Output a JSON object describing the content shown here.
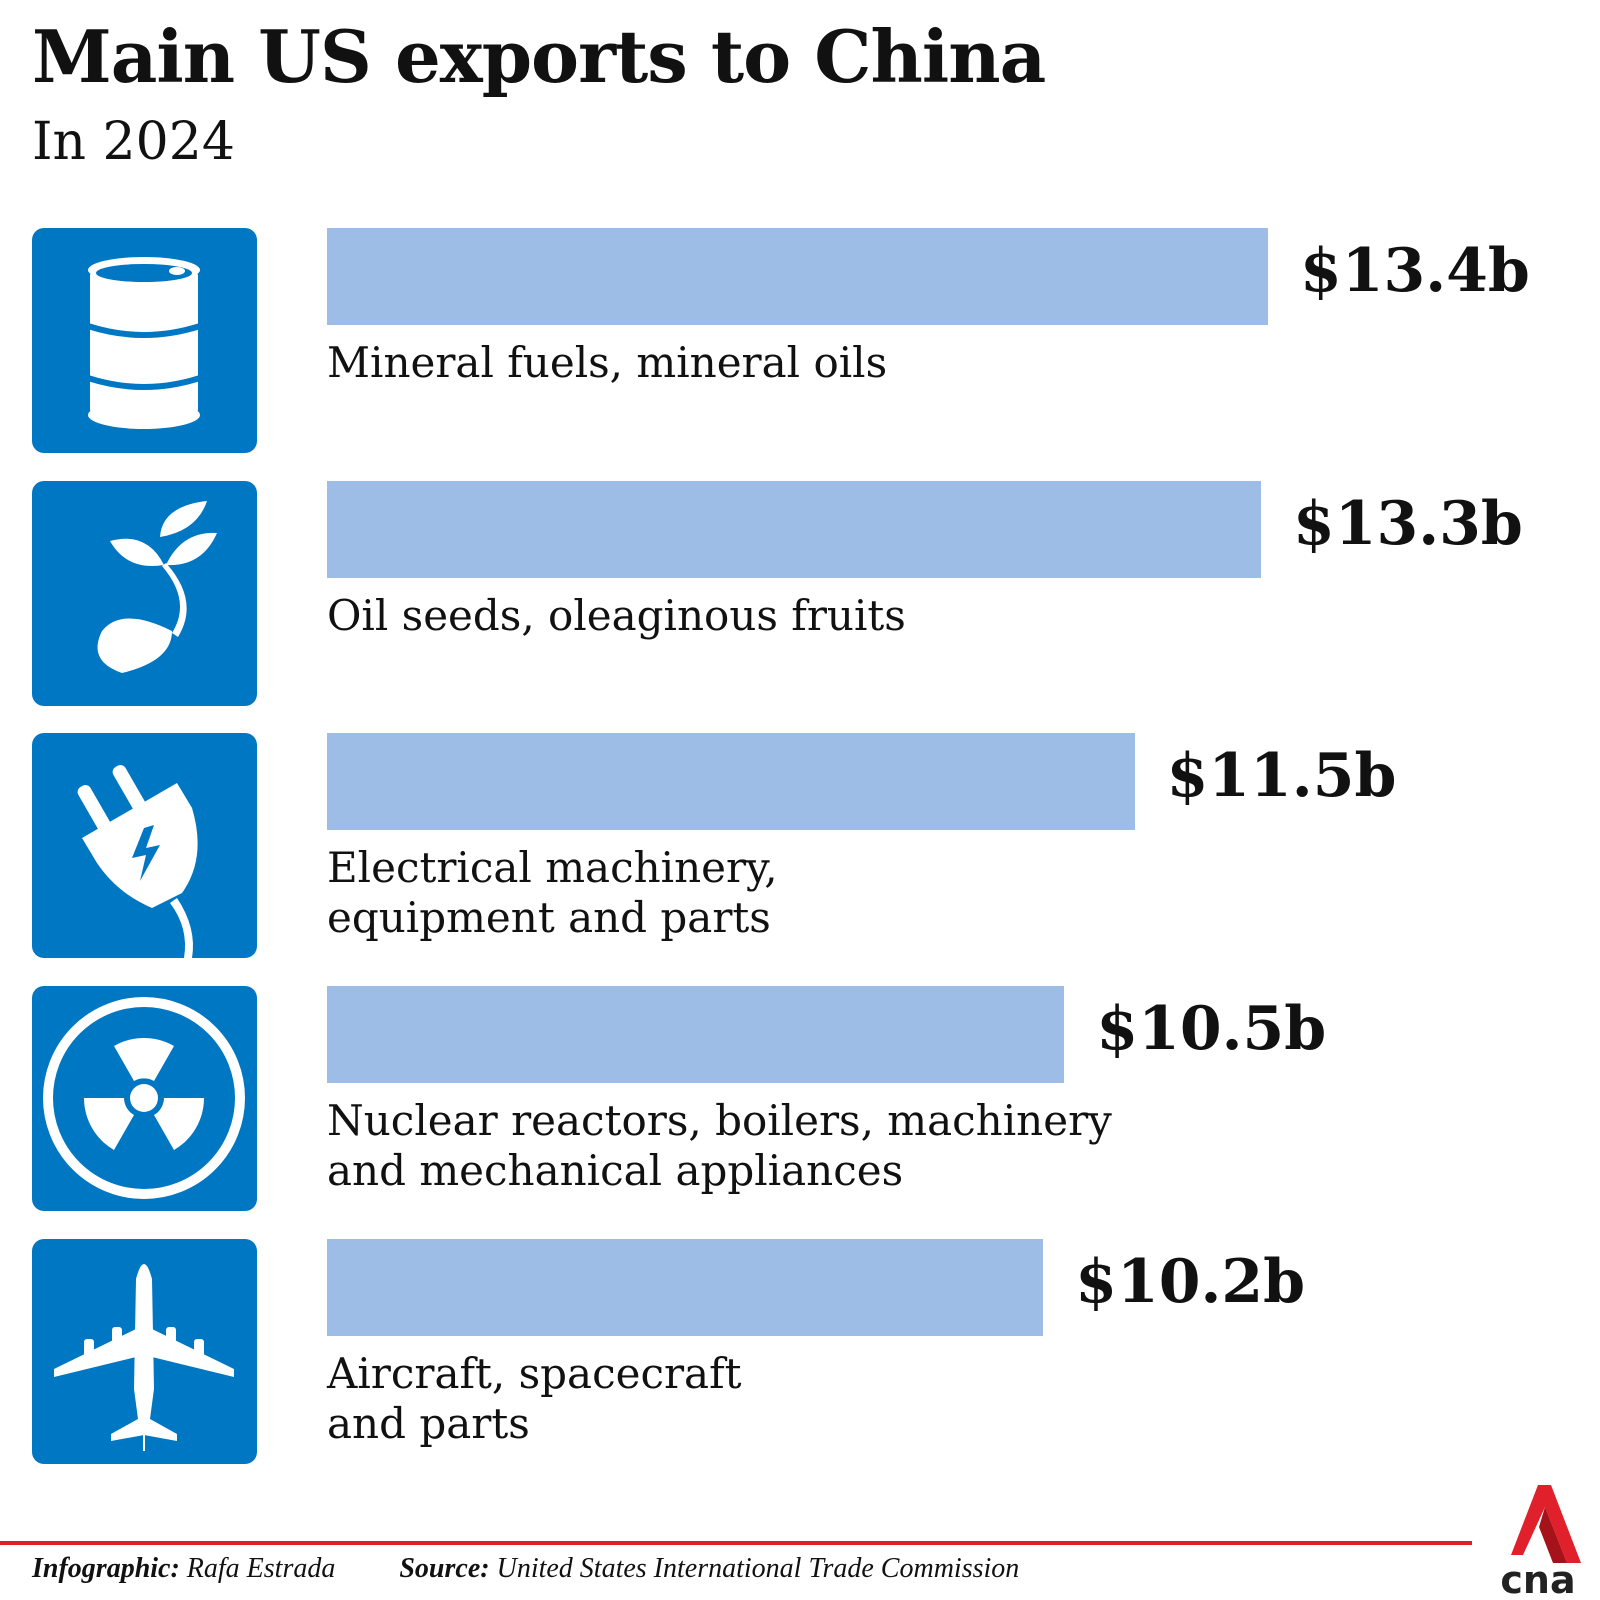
{
  "header": {
    "title": "Main US exports to China",
    "subtitle": "In 2024"
  },
  "chart_data": {
    "type": "bar",
    "orientation": "horizontal",
    "title": "Main US exports to China",
    "subtitle": "In 2024",
    "unit": "US$ billion",
    "categories": [
      "Mineral fuels, mineral oils",
      "Oil seeds, oleaginous fruits",
      "Electrical machinery,\nequipment and parts",
      "Nuclear reactors, boilers, machinery\nand mechanical appliances",
      "Aircraft, spacecraft\nand parts"
    ],
    "values": [
      13.4,
      13.3,
      11.5,
      10.5,
      10.2
    ],
    "value_labels": [
      "$13.4b",
      "$13.3b",
      "$11.5b",
      "$10.5b",
      "$10.2b"
    ],
    "icons": [
      "oil-barrel-icon",
      "seedling-icon",
      "electric-plug-icon",
      "radiation-icon",
      "airplane-icon"
    ],
    "xlim": [
      0,
      13.4
    ],
    "grid": false,
    "bar_color": "#9dbde6",
    "icon_bg_color": "#0077c2"
  },
  "footer": {
    "credit_label": "Infographic:",
    "credit_value": "Rafa Estrada",
    "source_label": "Source:",
    "source_value": "United States International Trade Commission",
    "logo_text": "cna"
  },
  "colors": {
    "accent": "#e02020"
  }
}
